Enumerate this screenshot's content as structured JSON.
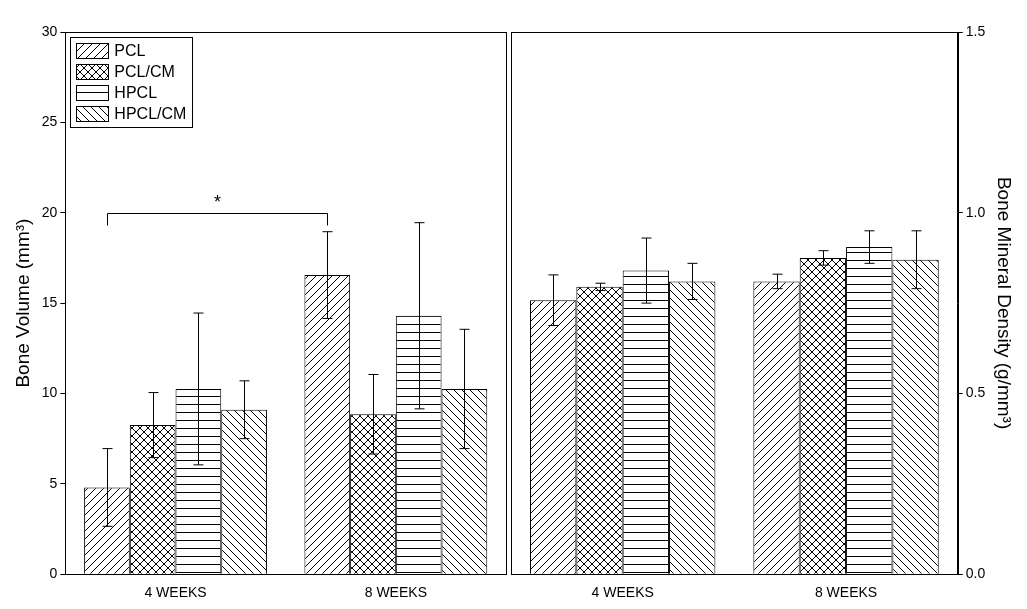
{
  "chart_data": [
    {
      "type": "bar",
      "ylabel": "Bone Volume (mm³)",
      "categories": [
        "4 WEEKS",
        "8 WEEKS"
      ],
      "series": [
        {
          "name": "PCL",
          "color": "#000000",
          "values": [
            4.8,
            16.55
          ],
          "errors": [
            2.15,
            2.4
          ]
        },
        {
          "name": "PCL/CM",
          "color": "#000000",
          "values": [
            8.25,
            8.85
          ],
          "errors": [
            1.8,
            2.2
          ]
        },
        {
          "name": "HPCL",
          "color": "#000000",
          "values": [
            10.25,
            14.3
          ],
          "errors": [
            4.2,
            5.15
          ]
        },
        {
          "name": "HPCL/CM",
          "color": "#000000",
          "values": [
            9.1,
            10.25
          ],
          "errors": [
            1.6,
            3.3
          ]
        }
      ],
      "ylim": [
        0,
        30
      ],
      "yticks": [
        0,
        5,
        10,
        15,
        20,
        25,
        30
      ],
      "grid": false,
      "legend": "top-left",
      "annotations": [
        {
          "text": "*",
          "y": 20,
          "series": "PCL",
          "from": "4 WEEKS",
          "to": "8 WEEKS"
        }
      ]
    },
    {
      "type": "bar",
      "ylabel": "Bone Mineral Density (g/mm³)",
      "categories": [
        "4 WEEKS",
        "8 WEEKS"
      ],
      "series": [
        {
          "color": "#000000",
          "values": [
            0.758,
            0.81
          ],
          "errors": [
            0.07,
            0.02
          ]
        },
        {
          "color": "#000000",
          "values": [
            0.795,
            0.875
          ],
          "errors": [
            0.01,
            0.02
          ]
        },
        {
          "color": "#000000",
          "values": [
            0.84,
            0.905
          ],
          "errors": [
            0.09,
            0.045
          ]
        },
        {
          "color": "#000000",
          "values": [
            0.81,
            0.87
          ],
          "errors": [
            0.05,
            0.08
          ]
        }
      ],
      "ylim": [
        0,
        1.5
      ],
      "yticks": [
        {
          "value": 0,
          "label": "0.0"
        },
        0.5,
        {
          "value": 1,
          "label": "1.0"
        },
        1.5
      ],
      "grid": false
    }
  ]
}
